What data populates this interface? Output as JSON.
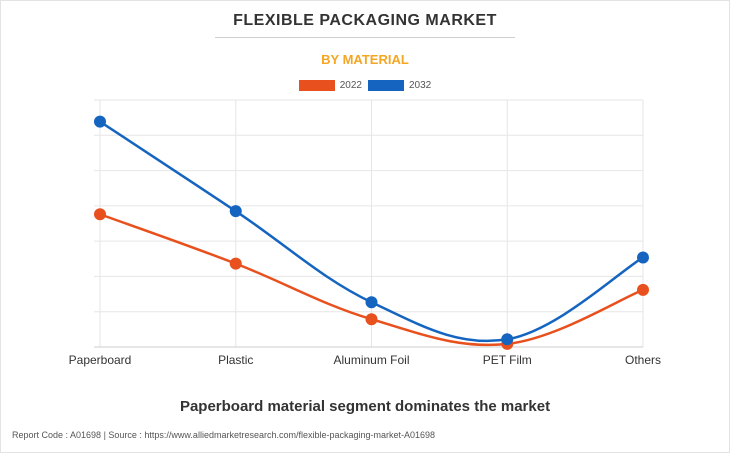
{
  "header": {
    "title": "FLEXIBLE PACKAGING MARKET",
    "subtitle": "BY MATERIAL"
  },
  "legend": {
    "items": [
      {
        "label": "2022",
        "color": "#e8501e"
      },
      {
        "label": "2032",
        "color": "#1565c0"
      }
    ]
  },
  "chart_data": {
    "type": "line",
    "categories": [
      "Paperboard",
      "Plastic",
      "Aluminum Foil",
      "PET Film",
      "Others"
    ],
    "series": [
      {
        "name": "2022",
        "color": "#e8501e",
        "values": [
          43,
          27,
          9,
          1,
          18.5
        ]
      },
      {
        "name": "2032",
        "color": "#1565c0",
        "values": [
          73,
          44,
          14.5,
          2.5,
          29
        ]
      }
    ],
    "ylim": [
      0,
      80
    ],
    "y_gridlines": 7,
    "grid": true,
    "legend_position": "top-center",
    "smooth": true
  },
  "footer": {
    "caption": "Paperboard material segment dominates the market",
    "source": "Report Code : A01698  |  Source : https://www.alliedmarketresearch.com/flexible-packaging-market-A01698"
  }
}
